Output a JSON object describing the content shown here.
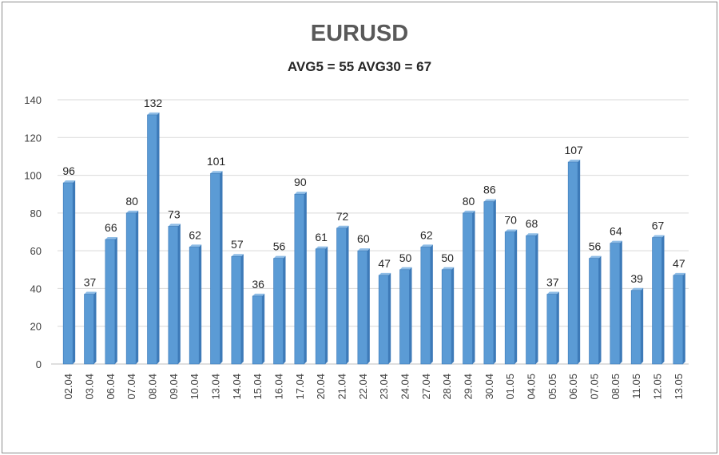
{
  "chart_data": {
    "type": "bar",
    "title": "EURUSD",
    "subtitle": "AVG5 = 55 AVG30 = 67",
    "categories": [
      "02.04",
      "03.04",
      "06.04",
      "07.04",
      "08.04",
      "09.04",
      "10.04",
      "13.04",
      "14.04",
      "15.04",
      "16.04",
      "17.04",
      "20.04",
      "21.04",
      "22.04",
      "23.04",
      "24.04",
      "27.04",
      "28.04",
      "29.04",
      "30.04",
      "01.05",
      "04.05",
      "05.05",
      "06.05",
      "07.05",
      "08.05",
      "11.05",
      "12.05",
      "13.05"
    ],
    "values": [
      96,
      37,
      66,
      80,
      132,
      73,
      62,
      101,
      57,
      36,
      56,
      90,
      61,
      72,
      60,
      47,
      50,
      62,
      50,
      80,
      86,
      70,
      68,
      37,
      107,
      56,
      64,
      39,
      67,
      47
    ],
    "ylim": [
      0,
      140
    ],
    "yticks": [
      0,
      20,
      40,
      60,
      80,
      100,
      120,
      140
    ],
    "grid": true,
    "legend": "none",
    "colors": {
      "bar": "#5b9bd5",
      "bar_dark": "#3d7ab8",
      "bar_light": "#8fbde6",
      "grid": "#d9d9d9"
    }
  }
}
